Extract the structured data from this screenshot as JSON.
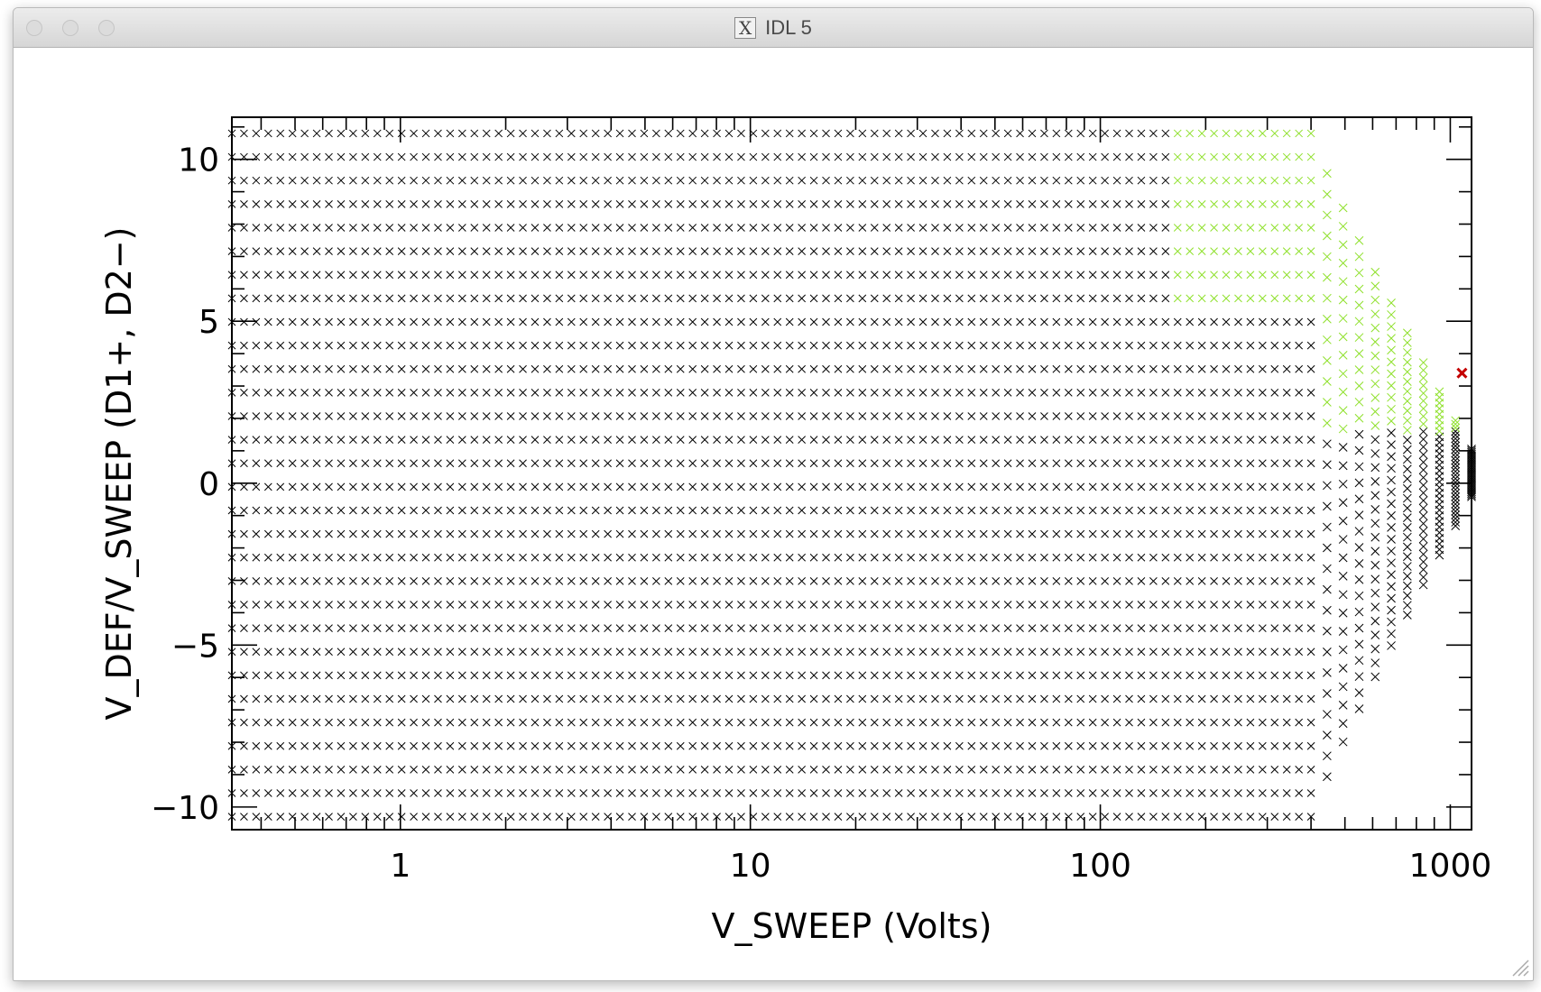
{
  "window": {
    "title": "IDL 5",
    "icon": "x11-icon"
  },
  "chart_data": {
    "type": "scatter",
    "xlabel": "V_SWEEP (Volts)",
    "ylabel": "V_DEF/V_SWEEP (D1+, D2−)",
    "x_scale": "log",
    "xlim": [
      0.33,
      1150
    ],
    "ylim": [
      -10.7,
      11.3
    ],
    "x_ticks": [
      1,
      10,
      100,
      1000
    ],
    "x_tick_labels": [
      "1",
      "10",
      "100",
      "1000"
    ],
    "y_ticks": [
      -10,
      -5,
      0,
      5,
      10
    ],
    "y_tick_labels": [
      "−10",
      "−5",
      "0",
      "5",
      "10"
    ],
    "grid": false,
    "marker": "x",
    "y_levels_range": [
      -10.3,
      10.8
    ],
    "y_level_count": 30,
    "x_range_points": [
      0.33,
      400
    ],
    "x_points_per_level": 90,
    "fan_x_limit": 1150,
    "fan_converge_ratio": 0.93,
    "highlight_x_threshold": 160,
    "highlight_y_threshold": 1.6,
    "series": [
      {
        "name": "",
        "color": "#000000"
      },
      {
        "name": "",
        "color": "#8ee02a"
      },
      {
        "name": "",
        "color": "#c40000",
        "x": [
          1080
        ],
        "y": [
          3.4
        ]
      }
    ]
  }
}
